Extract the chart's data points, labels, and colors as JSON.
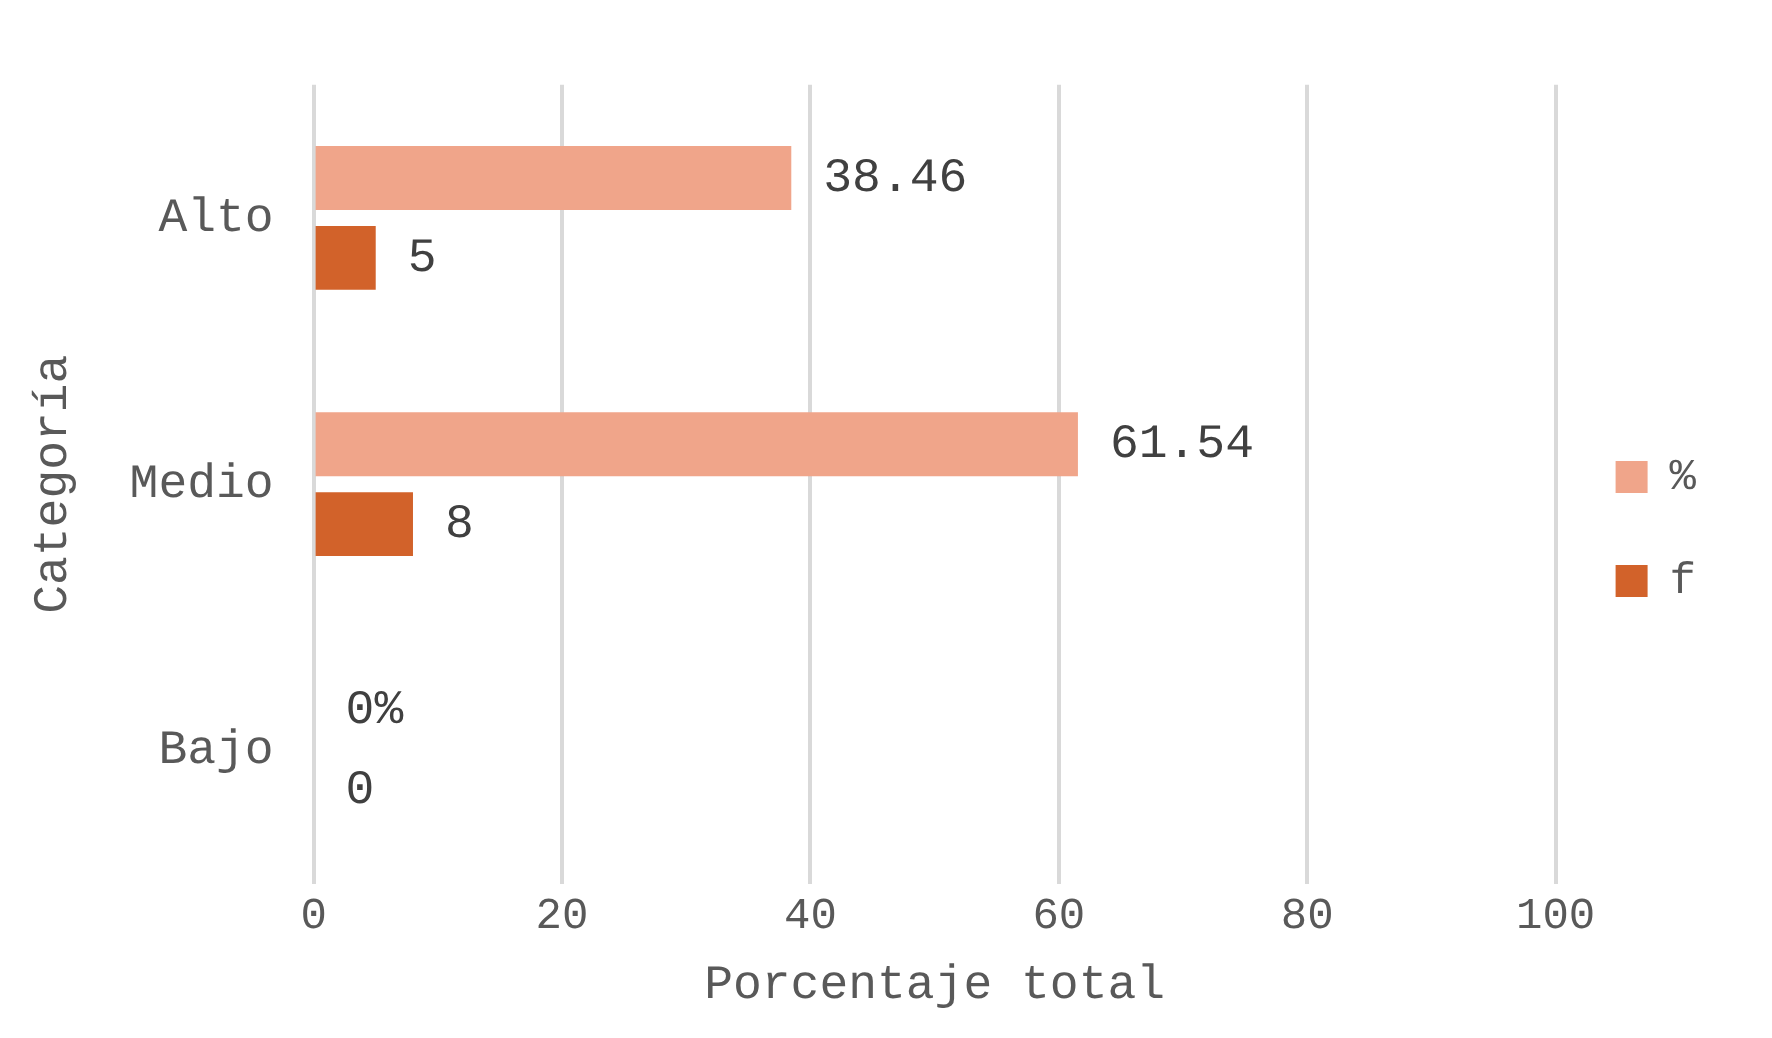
{
  "chart_data": {
    "type": "bar",
    "orientation": "horizontal",
    "xlabel": "Porcentaje total",
    "ylabel": "Categoría",
    "categories": [
      "Alto",
      "Medio",
      "Bajo"
    ],
    "series": [
      {
        "name": "%",
        "color": "#f0a58a",
        "values": [
          38.46,
          61.54,
          0
        ],
        "value_labels": [
          "38.46",
          "61.54",
          "0%"
        ]
      },
      {
        "name": "f",
        "color": "#d2622a",
        "values": [
          5,
          8,
          0
        ],
        "value_labels": [
          "5",
          "8",
          "0"
        ]
      }
    ],
    "xlim": [
      0,
      100
    ],
    "xticks": [
      0,
      20,
      40,
      60,
      80,
      100
    ],
    "grid": "x",
    "legend": "right"
  }
}
